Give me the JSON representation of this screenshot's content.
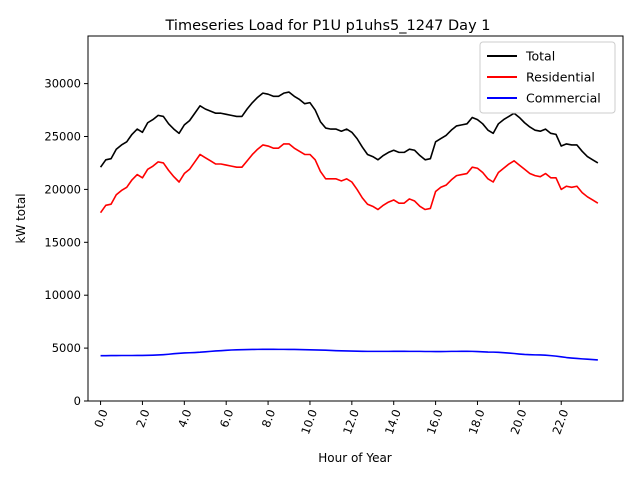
{
  "chart_data": {
    "type": "line",
    "title": "Timeseries Load for P1U p1uhs5_1247  Day 1",
    "xlabel": "Hour of Year",
    "ylabel": "kW total",
    "xlim": [
      -0.6,
      24.95
    ],
    "ylim": [
      0,
      34500
    ],
    "x_ticks": [
      0,
      2,
      4,
      6,
      8,
      10,
      12,
      14,
      16,
      18,
      20,
      22
    ],
    "x_tick_labels": [
      "0.0",
      "2.0",
      "4.0",
      "6.0",
      "8.0",
      "10.0",
      "12.0",
      "14.0",
      "16.0",
      "18.0",
      "20.0",
      "22.0"
    ],
    "y_ticks": [
      0,
      5000,
      10000,
      15000,
      20000,
      25000,
      30000
    ],
    "y_tick_labels": [
      "0",
      "5000",
      "10000",
      "15000",
      "20000",
      "25000",
      "30000"
    ],
    "grid": false,
    "legend_position": "top-right",
    "x_step_hours": 0.25,
    "series": [
      {
        "name": "Total",
        "color": "#000000",
        "values": [
          22100,
          22800,
          22900,
          23800,
          24200,
          24500,
          25200,
          25700,
          25400,
          26300,
          26600,
          27000,
          26900,
          26200,
          25700,
          25300,
          26100,
          26500,
          27200,
          27900,
          27600,
          27400,
          27200,
          27200,
          27100,
          27000,
          26900,
          26900,
          27600,
          28200,
          28700,
          29100,
          29000,
          28800,
          28800,
          29100,
          29200,
          28800,
          28500,
          28100,
          28200,
          27500,
          26400,
          25800,
          25700,
          25700,
          25500,
          25700,
          25400,
          24800,
          24000,
          23300,
          23100,
          22800,
          23200,
          23500,
          23700,
          23500,
          23500,
          23800,
          23700,
          23200,
          22800,
          22900,
          24500,
          24800,
          25100,
          25600,
          26000,
          26100,
          26200,
          26800,
          26600,
          26200,
          25600,
          25300,
          26200,
          26600,
          26900,
          27200,
          26800,
          26300,
          25900,
          25600,
          25500,
          25700,
          25300,
          25200,
          24100,
          24300,
          24200,
          24200,
          23600,
          23100,
          22800,
          22500
        ]
      },
      {
        "name": "Residential",
        "color": "#ff0000",
        "values": [
          17800,
          18500,
          18600,
          19500,
          19900,
          20200,
          20900,
          21400,
          21100,
          21900,
          22200,
          22600,
          22500,
          21800,
          21200,
          20700,
          21500,
          21900,
          22600,
          23300,
          23000,
          22700,
          22400,
          22400,
          22300,
          22200,
          22100,
          22100,
          22700,
          23300,
          23800,
          24200,
          24100,
          23900,
          23900,
          24300,
          24300,
          23900,
          23600,
          23300,
          23300,
          22800,
          21700,
          21000,
          21000,
          21000,
          20800,
          21000,
          20700,
          20000,
          19200,
          18600,
          18400,
          18100,
          18500,
          18800,
          19000,
          18700,
          18700,
          19100,
          18900,
          18400,
          18100,
          18200,
          19800,
          20200,
          20400,
          20900,
          21300,
          21400,
          21500,
          22100,
          22000,
          21600,
          21000,
          20700,
          21600,
          22000,
          22400,
          22700,
          22300,
          21900,
          21500,
          21300,
          21200,
          21500,
          21100,
          21100,
          20000,
          20300,
          20200,
          20300,
          19700,
          19300,
          19000,
          18700
        ]
      },
      {
        "name": "Commercial",
        "color": "#0000ff",
        "values": [
          4280,
          4280,
          4290,
          4290,
          4300,
          4300,
          4300,
          4310,
          4310,
          4320,
          4330,
          4350,
          4380,
          4420,
          4470,
          4510,
          4540,
          4560,
          4580,
          4610,
          4650,
          4690,
          4730,
          4760,
          4790,
          4820,
          4840,
          4850,
          4860,
          4870,
          4880,
          4890,
          4890,
          4890,
          4880,
          4880,
          4870,
          4870,
          4860,
          4850,
          4840,
          4830,
          4810,
          4800,
          4780,
          4760,
          4740,
          4730,
          4720,
          4710,
          4700,
          4690,
          4690,
          4690,
          4690,
          4690,
          4700,
          4700,
          4700,
          4690,
          4690,
          4690,
          4680,
          4680,
          4670,
          4670,
          4680,
          4690,
          4690,
          4700,
          4700,
          4690,
          4670,
          4650,
          4630,
          4620,
          4600,
          4570,
          4530,
          4490,
          4440,
          4400,
          4380,
          4360,
          4350,
          4330,
          4290,
          4240,
          4180,
          4110,
          4060,
          4020,
          3980,
          3950,
          3920,
          3880
        ]
      }
    ]
  }
}
